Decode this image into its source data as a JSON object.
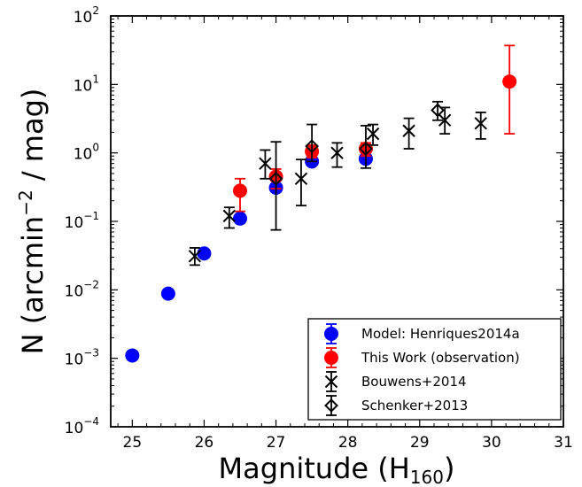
{
  "chart_data": {
    "type": "scatter",
    "title": "",
    "xlabel": {
      "main": "Magnitude (H",
      "sub": "160",
      "close": ")"
    },
    "ylabel": {
      "main": "N (arcmin",
      "sup": "−2",
      "rest": " / mag)"
    },
    "xlim": [
      24.7,
      31
    ],
    "ylim": [
      0.0001,
      100
    ],
    "yscale": "log",
    "xticks": [
      "25",
      "26",
      "27",
      "28",
      "29",
      "30",
      "31"
    ],
    "yticks": [
      {
        "base": "10",
        "exp": "−4"
      },
      {
        "base": "10",
        "exp": "−3"
      },
      {
        "base": "10",
        "exp": "−2"
      },
      {
        "base": "10",
        "exp": "−1"
      },
      {
        "base": "10",
        "exp": "0"
      },
      {
        "base": "10",
        "exp": "1"
      },
      {
        "base": "10",
        "exp": "2"
      }
    ],
    "grid": false,
    "legend_position": "bottom-right",
    "series": [
      {
        "name": "Model: Henriques2014a",
        "marker": "circle",
        "color": "#0000ff",
        "points": [
          {
            "x": 25.0,
            "y": 0.0011
          },
          {
            "x": 25.5,
            "y": 0.0088
          },
          {
            "x": 26.0,
            "y": 0.034
          },
          {
            "x": 26.5,
            "y": 0.11
          },
          {
            "x": 27.0,
            "y": 0.31
          },
          {
            "x": 27.5,
            "y": 0.75
          },
          {
            "x": 28.25,
            "y": 0.82
          }
        ]
      },
      {
        "name": "This Work (observation)",
        "marker": "circle",
        "color": "#ff0000",
        "points": [
          {
            "x": 26.5,
            "y": 0.28,
            "ylo": 0.14,
            "yhi": 0.42
          },
          {
            "x": 27.0,
            "y": 0.45,
            "ylo": 0.3,
            "yhi": 0.58
          },
          {
            "x": 27.5,
            "y": 1.05,
            "ylo": 0.85,
            "yhi": 1.3
          },
          {
            "x": 28.25,
            "y": 1.15,
            "ylo": 0.9,
            "yhi": 1.4
          },
          {
            "x": 30.25,
            "y": 11.0,
            "ylo": 1.9,
            "yhi": 37.0
          }
        ]
      },
      {
        "name": "Bouwens+2014",
        "marker": "x",
        "color": "#000000",
        "points": [
          {
            "x": 25.87,
            "y": 0.031,
            "ylo": 0.023,
            "yhi": 0.041
          },
          {
            "x": 26.35,
            "y": 0.12,
            "ylo": 0.08,
            "yhi": 0.16
          },
          {
            "x": 26.85,
            "y": 0.7,
            "ylo": 0.42,
            "yhi": 1.1
          },
          {
            "x": 27.35,
            "y": 0.42,
            "ylo": 0.17,
            "yhi": 0.8
          },
          {
            "x": 27.85,
            "y": 1.0,
            "ylo": 0.62,
            "yhi": 1.4
          },
          {
            "x": 28.35,
            "y": 1.9,
            "ylo": 1.3,
            "yhi": 2.6
          },
          {
            "x": 28.85,
            "y": 2.1,
            "ylo": 1.15,
            "yhi": 3.2
          },
          {
            "x": 29.35,
            "y": 3.0,
            "ylo": 1.9,
            "yhi": 4.6
          },
          {
            "x": 29.85,
            "y": 2.7,
            "ylo": 1.6,
            "yhi": 3.9
          }
        ]
      },
      {
        "name": "Schenker+2013",
        "marker": "diamond",
        "color": "#000000",
        "points": [
          {
            "x": 27.0,
            "y": 0.42,
            "ylo": 0.075,
            "yhi": 1.45
          },
          {
            "x": 27.5,
            "y": 1.25,
            "ylo": 0.75,
            "yhi": 2.6
          },
          {
            "x": 28.25,
            "y": 1.15,
            "ylo": 0.6,
            "yhi": 2.5
          },
          {
            "x": 29.25,
            "y": 4.2,
            "ylo": 3.0,
            "yhi": 5.6
          }
        ]
      }
    ]
  }
}
